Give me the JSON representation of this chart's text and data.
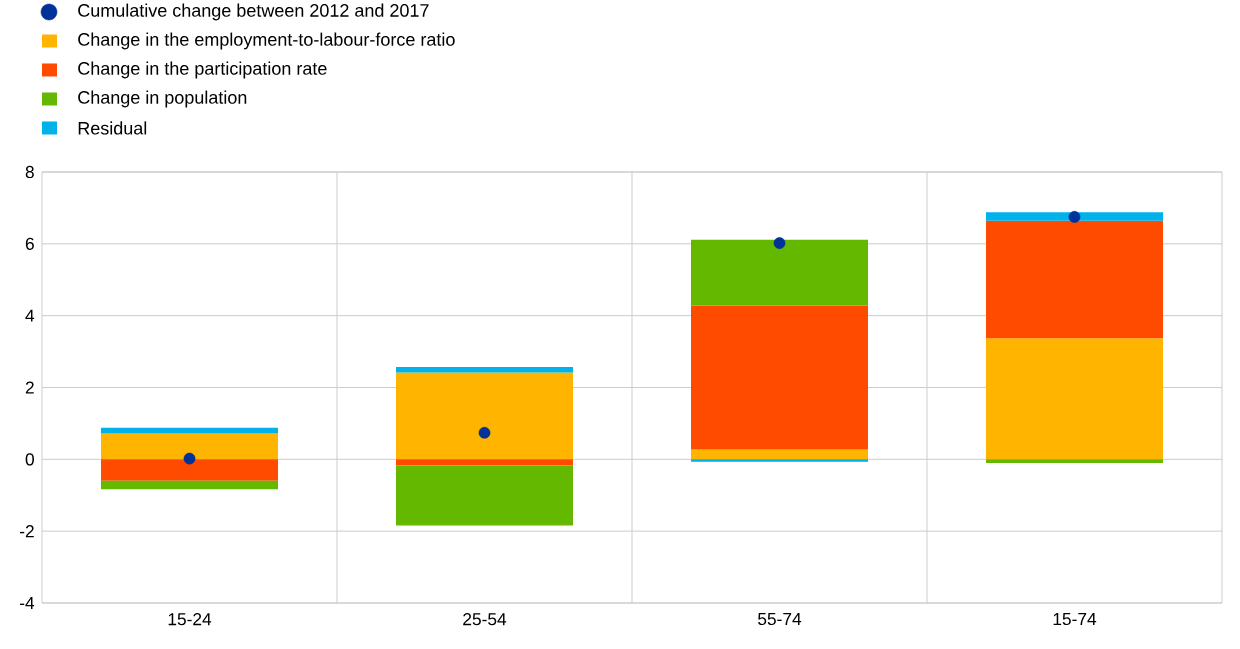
{
  "chart_data": {
    "type": "bar",
    "stacked": true,
    "categories": [
      "15-24",
      "25-54",
      "55-74",
      "15-74"
    ],
    "series": [
      {
        "name": "Cumulative change between 2012 and 2017",
        "type": "scatter",
        "marker": "circle",
        "color": "#003299",
        "x": [
          "15-24",
          "25-54",
          "55-74",
          "15-74"
        ],
        "values": [
          0.02,
          0.74,
          6.02,
          6.75
        ]
      },
      {
        "name": "Change in the employment-to-labour-force ratio",
        "color": "#ffb400",
        "values": [
          0.72,
          2.42,
          0.27,
          3.37
        ]
      },
      {
        "name": "Change in the participation rate",
        "color": "#ff4b00",
        "values": [
          -0.6,
          -0.17,
          4.01,
          3.27
        ]
      },
      {
        "name": "Change in population",
        "color": "#65b800",
        "values": [
          -0.23,
          -1.67,
          1.83,
          -0.1
        ]
      },
      {
        "name": "Residual",
        "color": "#00b1ea",
        "values": [
          0.16,
          0.15,
          -0.07,
          0.24
        ]
      }
    ],
    "ylim": [
      -4,
      8
    ],
    "yticks": [
      -4,
      -2,
      0,
      2,
      4,
      6,
      8
    ],
    "grid": true,
    "legend": "top left"
  }
}
